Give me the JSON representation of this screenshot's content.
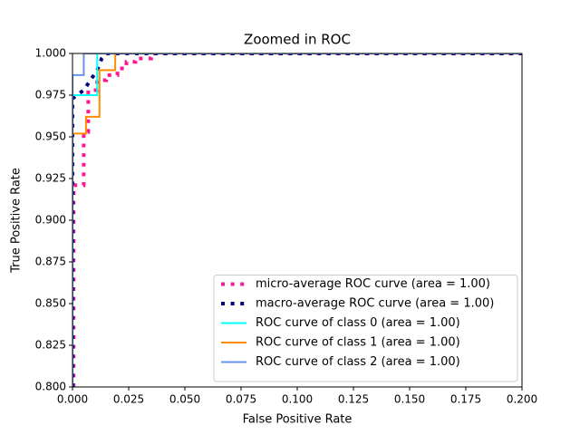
{
  "chart_data": {
    "type": "line",
    "title": "Zoomed in ROC",
    "x_label": "False Positive Rate",
    "y_label": "True Positive Rate",
    "xlim": [
      0,
      0.2
    ],
    "ylim": [
      0.8,
      1.0
    ],
    "xticks": [
      {
        "value": 0,
        "label": "0.000"
      },
      0.025,
      {
        "value": 0.05,
        "label": "0.050"
      },
      0.075,
      {
        "value": 0.1,
        "label": "0.100"
      },
      0.125,
      {
        "value": 0.15,
        "label": "0.150"
      },
      0.175,
      {
        "value": 0.2,
        "label": "0.200"
      }
    ],
    "yticks": [
      {
        "value": 0.8,
        "label": "0.800"
      },
      0.825,
      {
        "value": 0.85,
        "label": "0.850"
      },
      0.875,
      {
        "value": 0.9,
        "label": "0.900"
      },
      0.925,
      {
        "value": 0.95,
        "label": "0.950"
      },
      0.975,
      {
        "value": 1.0,
        "label": "1.000"
      }
    ],
    "legend": "lower right",
    "series": [
      {
        "name": "micro-average ROC curve (area = 1.00)",
        "color": "#ff1493",
        "linestyle": "dotted",
        "linewidth": 4,
        "x": [
          0.0005,
          0.0005,
          0.005,
          0.005,
          0.007,
          0.007,
          0.011,
          0.011,
          0.015,
          0.015,
          0.02,
          0.02,
          0.024,
          0.024,
          0.028,
          0.028,
          0.035,
          0.035,
          0.2
        ],
        "y": [
          0.8,
          0.921,
          0.921,
          0.953,
          0.953,
          0.978,
          0.978,
          0.984,
          0.984,
          0.987,
          0.987,
          0.991,
          0.991,
          0.995,
          0.995,
          0.997,
          0.997,
          1.0,
          1.0
        ]
      },
      {
        "name": "macro-average ROC curve (area = 1.00)",
        "color": "#000080",
        "linestyle": "dotted",
        "linewidth": 4,
        "x": [
          0,
          0,
          0.005,
          0.008,
          0.011,
          0.013,
          0.015,
          0.2
        ],
        "y": [
          0.8,
          0.973,
          0.978,
          0.984,
          0.99,
          0.997,
          1.0,
          1.0
        ]
      },
      {
        "name": "ROC curve of class 0 (area = 1.00)",
        "color": "#00ffff",
        "linestyle": "solid",
        "linewidth": 2,
        "x": [
          0,
          0,
          0.011,
          0.011,
          0.2
        ],
        "y": [
          0.8,
          0.975,
          0.975,
          1.0,
          1.0
        ]
      },
      {
        "name": "ROC curve of class 1 (area = 1.00)",
        "color": "#ff8c00",
        "linestyle": "solid",
        "linewidth": 2,
        "x": [
          0,
          0,
          0.006,
          0.006,
          0.012,
          0.012,
          0.019,
          0.019,
          0.2
        ],
        "y": [
          0.8,
          0.952,
          0.952,
          0.962,
          0.962,
          0.99,
          0.99,
          1.0,
          1.0
        ]
      },
      {
        "name": "ROC curve of class 2 (area = 1.00)",
        "color": "#6495ed",
        "linestyle": "solid",
        "linewidth": 2,
        "x": [
          0,
          0,
          0.005,
          0.005,
          0.2
        ],
        "y": [
          0.8,
          0.987,
          0.987,
          1.0,
          1.0
        ]
      }
    ]
  }
}
